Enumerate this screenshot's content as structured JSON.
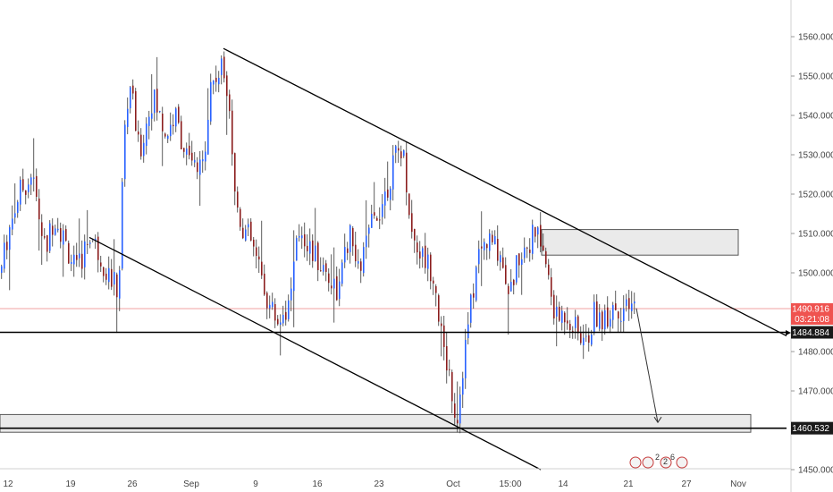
{
  "colors": {
    "background": "#ffffff",
    "bull": "#2962ff",
    "bear": "#8b1e1e",
    "wick": "#333333",
    "trendline": "#000000",
    "zone_fill": "#e6e6e6",
    "zone_stroke": "#555555",
    "current_price_line": "#f2a0a0",
    "current_price_tag": "#ef5350",
    "axis_text": "#444444"
  },
  "chart_data": {
    "type": "candlestick",
    "title": "",
    "xlabel": "",
    "ylabel": "",
    "ylim": [
      1447,
      1566
    ],
    "y_ticks": [
      1450,
      1460,
      1470,
      1480,
      1490,
      1500,
      1510,
      1520,
      1530,
      1540,
      1550,
      1560
    ],
    "y_tick_labels": [
      "1450.000",
      "1460.000",
      "1470.000",
      "1480.000",
      "1490.000",
      "1500.000",
      "1510.000",
      "1520.000",
      "1530.000",
      "1540.000",
      "1550.000",
      "1560.000"
    ],
    "x_ticks": [
      "12",
      "19",
      "26",
      "Sep",
      "9",
      "16",
      "23",
      "Oct",
      "15:00",
      "14",
      "21",
      "27",
      "Nov"
    ],
    "grid": false,
    "waypoints": [
      [
        0,
        1500
      ],
      [
        8,
        1510
      ],
      [
        20,
        1520
      ],
      [
        35,
        1525
      ],
      [
        50,
        1505
      ],
      [
        60,
        1515
      ],
      [
        85,
        1500
      ],
      [
        100,
        1510
      ],
      [
        120,
        1500
      ],
      [
        132,
        1495
      ],
      [
        138,
        1535
      ],
      [
        145,
        1548
      ],
      [
        155,
        1530
      ],
      [
        170,
        1545
      ],
      [
        185,
        1535
      ],
      [
        195,
        1540
      ],
      [
        210,
        1528
      ],
      [
        225,
        1525
      ],
      [
        235,
        1548
      ],
      [
        248,
        1552
      ],
      [
        255,
        1547
      ],
      [
        262,
        1520
      ],
      [
        270,
        1512
      ],
      [
        280,
        1508
      ],
      [
        290,
        1500
      ],
      [
        300,
        1492
      ],
      [
        310,
        1488
      ],
      [
        322,
        1492
      ],
      [
        335,
        1512
      ],
      [
        348,
        1505
      ],
      [
        365,
        1500
      ],
      [
        378,
        1495
      ],
      [
        390,
        1510
      ],
      [
        400,
        1500
      ],
      [
        415,
        1512
      ],
      [
        430,
        1520
      ],
      [
        440,
        1528
      ],
      [
        448,
        1532
      ],
      [
        452,
        1528
      ],
      [
        460,
        1510
      ],
      [
        470,
        1505
      ],
      [
        485,
        1500
      ],
      [
        495,
        1480
      ],
      [
        502,
        1475
      ],
      [
        510,
        1462
      ],
      [
        518,
        1478
      ],
      [
        525,
        1490
      ],
      [
        535,
        1505
      ],
      [
        545,
        1508
      ],
      [
        558,
        1506
      ],
      [
        570,
        1495
      ],
      [
        580,
        1505
      ],
      [
        590,
        1508
      ],
      [
        600,
        1510
      ],
      [
        608,
        1505
      ],
      [
        615,
        1495
      ],
      [
        622,
        1488
      ],
      [
        632,
        1490
      ],
      [
        645,
        1485
      ],
      [
        655,
        1482
      ],
      [
        665,
        1490
      ],
      [
        675,
        1488
      ],
      [
        685,
        1492
      ],
      [
        700,
        1490
      ],
      [
        710,
        1491
      ]
    ],
    "levels": [
      {
        "name": "horizontal support",
        "value": 1484.884
      },
      {
        "name": "current price",
        "value": 1490.916
      }
    ],
    "price_labels": [
      {
        "text": "1490.916",
        "sub": "03:21:08",
        "kind": "current"
      },
      {
        "text": "1484.884",
        "kind": "level"
      },
      {
        "text": "1460.532",
        "kind": "level"
      }
    ],
    "trendlines": [
      {
        "name": "upper-trendline",
        "from": [
          250,
          1557
        ],
        "to": [
          880,
          1484
        ]
      },
      {
        "name": "lower-trendline",
        "from": [
          100,
          1509
        ],
        "to": [
          605,
          1450
        ]
      },
      {
        "name": "support-line",
        "from": [
          0,
          1484.884
        ],
        "to": [
          880,
          1484.884
        ]
      },
      {
        "name": "lower-support-line",
        "from": [
          0,
          1460.532
        ],
        "to": [
          880,
          1460.532
        ]
      }
    ],
    "zones": [
      {
        "name": "resistance-zone",
        "x0": 606,
        "x1": 826,
        "top": 1511,
        "bottom": 1504.5
      },
      {
        "name": "support-zone",
        "x0": 0,
        "x1": 840,
        "top": 1464,
        "bottom": 1459.5
      }
    ],
    "projection": {
      "name": "projection-arrow",
      "points": [
        [
          712,
          1491
        ],
        [
          736,
          1462
        ]
      ]
    }
  },
  "toolbar_icons": [
    "flag-icon",
    "flag-icon",
    "flag-icon",
    "flag-icon"
  ],
  "event_badge_text": [
    "2",
    "2",
    "6"
  ]
}
